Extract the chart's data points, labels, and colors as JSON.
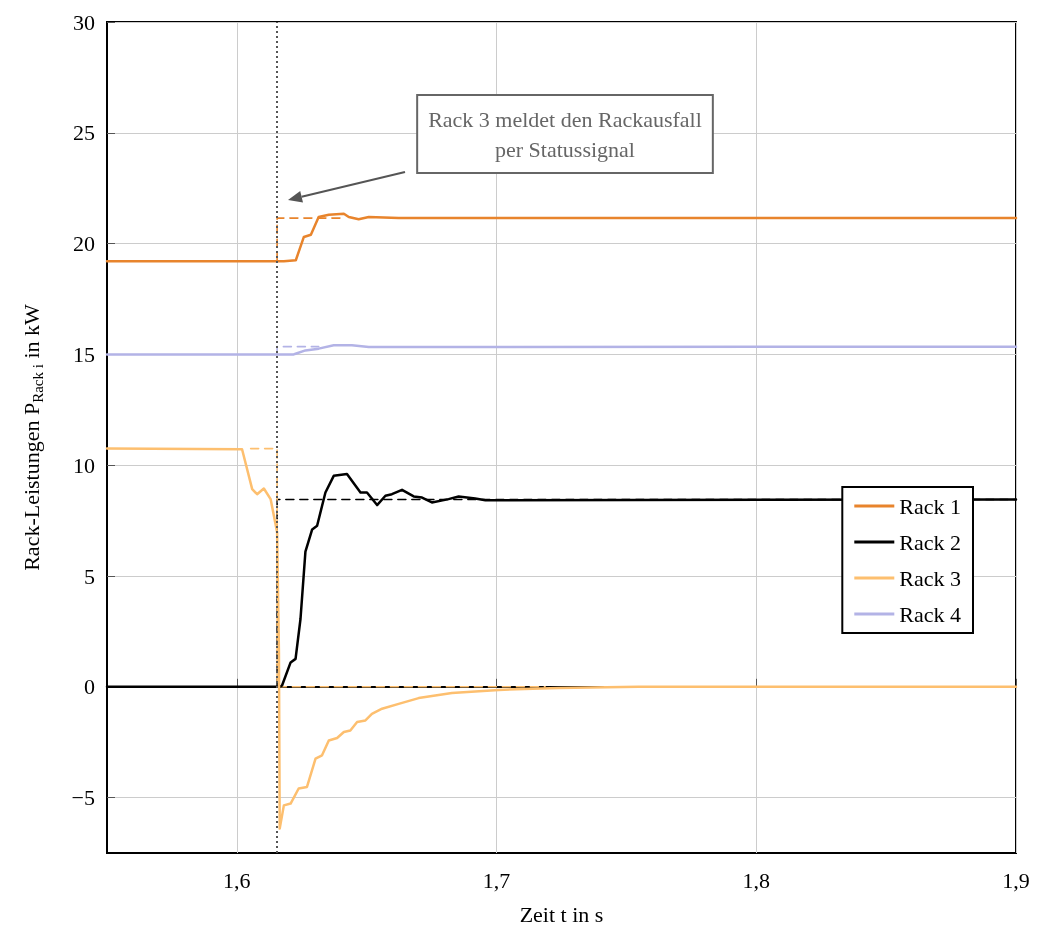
{
  "chart_data": {
    "type": "line",
    "xlabel": "Zeit t in s",
    "ylabel": "Rack-Leistungen P$_{Rack i}$ in kW",
    "xlim": [
      1.55,
      1.9
    ],
    "ylim": [
      -7.5,
      30
    ],
    "xticks": [
      {
        "value": 1.6,
        "label": "1,6"
      },
      {
        "value": 1.7,
        "label": "1,7"
      },
      {
        "value": 1.8,
        "label": "1,8"
      },
      {
        "value": 1.9,
        "label": "1,9"
      }
    ],
    "yticks": [
      {
        "value": -5,
        "label": "−5"
      },
      0,
      5,
      10,
      15,
      20,
      25,
      30
    ],
    "grid": true,
    "legend": "right",
    "line_style": "solid",
    "ref_lines": [
      {
        "axis": "x",
        "value": 1.6155,
        "color": "#555555",
        "line_style": "dotted"
      }
    ],
    "annotations": [
      "Rack 3 meldet den Rackausfall\nper Statussignal"
    ],
    "series": [
      {
        "color": "#e8842c",
        "line_style": "dashed",
        "x": [
          1.6155,
          1.6155,
          1.6418
        ],
        "values": [
          19.2,
          21.15,
          21.15
        ]
      },
      {
        "color": "#000000",
        "line_style": "dashed",
        "x": [
          1.6155,
          1.6155,
          1.9
        ],
        "values": [
          0,
          8.45,
          8.45
        ]
      },
      {
        "color": "#fdbf6f",
        "line_style": "dashed",
        "x": [
          1.6053,
          1.6155,
          1.6155,
          1.7187
        ],
        "values": [
          10.75,
          10.75,
          0,
          0
        ]
      },
      {
        "color": "#b3b3e6",
        "line_style": "dashed",
        "x": [
          1.6155,
          1.6155,
          1.6315
        ],
        "values": [
          15.0,
          15.35,
          15.35
        ]
      },
      {
        "name": "Rack 1",
        "color": "#e8842c",
        "x": [
          1.55,
          1.6181,
          1.6227,
          1.6258,
          1.6285,
          1.6315,
          1.6354,
          1.6412,
          1.6431,
          1.6469,
          1.6508,
          1.6623,
          1.7008,
          1.9
        ],
        "values": [
          19.2,
          19.2,
          19.25,
          20.3,
          20.4,
          21.2,
          21.3,
          21.35,
          21.2,
          21.1,
          21.2,
          21.15,
          21.15,
          21.15
        ]
      },
      {
        "name": "Rack 2",
        "color": "#000000",
        "x": [
          1.55,
          1.6165,
          1.6174,
          1.6207,
          1.6226,
          1.6245,
          1.6264,
          1.629,
          1.6309,
          1.6341,
          1.6373,
          1.6424,
          1.6457,
          1.6476,
          1.6501,
          1.654,
          1.6572,
          1.6597,
          1.6636,
          1.6681,
          1.6713,
          1.6751,
          1.6815,
          1.6854,
          1.6918,
          1.6957,
          1.7008,
          1.9
        ],
        "values": [
          0,
          0,
          0.06,
          1.1,
          1.26,
          3.06,
          6.1,
          7.1,
          7.27,
          8.77,
          9.52,
          9.6,
          9.07,
          8.77,
          8.77,
          8.2,
          8.62,
          8.69,
          8.89,
          8.59,
          8.54,
          8.32,
          8.47,
          8.59,
          8.5,
          8.42,
          8.42,
          8.45
        ]
      },
      {
        "name": "Rack 3",
        "color": "#fdbf6f",
        "x": [
          1.55,
          1.602,
          1.6059,
          1.6078,
          1.6104,
          1.613,
          1.6155,
          1.6162,
          1.6165,
          1.6181,
          1.6207,
          1.6238,
          1.627,
          1.6303,
          1.6328,
          1.6354,
          1.6386,
          1.6412,
          1.6437,
          1.6463,
          1.6495,
          1.652,
          1.6559,
          1.6623,
          1.67,
          1.6828,
          1.7008,
          1.7238,
          1.7546,
          1.9
        ],
        "values": [
          10.75,
          10.72,
          8.92,
          8.69,
          8.95,
          8.47,
          6.97,
          1.58,
          -6.4,
          -5.35,
          -5.27,
          -4.59,
          -4.52,
          -3.24,
          -3.09,
          -2.42,
          -2.31,
          -2.04,
          -1.97,
          -1.59,
          -1.52,
          -1.22,
          -0.99,
          -0.77,
          -0.51,
          -0.28,
          -0.14,
          -0.05,
          0,
          0
        ]
      },
      {
        "name": "Rack 4",
        "color": "#b3b3e6",
        "x": [
          1.55,
          1.6219,
          1.6226,
          1.6264,
          1.6315,
          1.6373,
          1.6443,
          1.6508,
          1.9
        ],
        "values": [
          15.0,
          15.0,
          15.03,
          15.18,
          15.26,
          15.41,
          15.41,
          15.33,
          15.35
        ]
      }
    ]
  }
}
